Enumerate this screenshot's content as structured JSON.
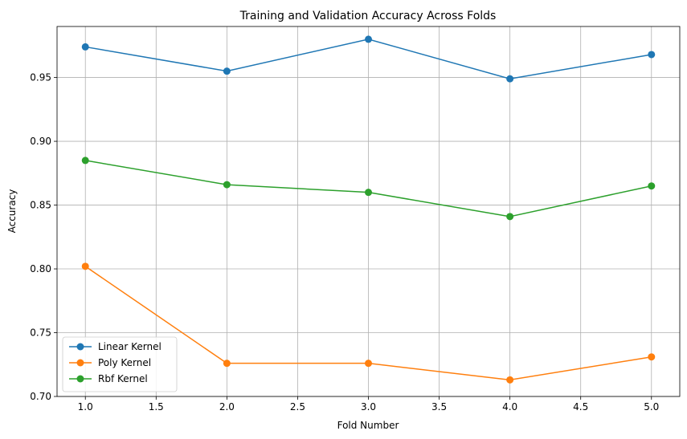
{
  "chart_data": {
    "type": "line",
    "title": "Training and Validation Accuracy Across Folds",
    "xlabel": "Fold Number",
    "ylabel": "Accuracy",
    "x": [
      1,
      2,
      3,
      4,
      5
    ],
    "xlim": [
      0.8,
      5.2
    ],
    "ylim": [
      0.7,
      0.99
    ],
    "xticks": [
      "1.0",
      "1.5",
      "2.0",
      "2.5",
      "3.0",
      "3.5",
      "4.0",
      "4.5",
      "5.0"
    ],
    "yticks": [
      "0.70",
      "0.75",
      "0.80",
      "0.85",
      "0.90",
      "0.95"
    ],
    "grid": true,
    "legend_position": "lower-left",
    "marker": "circle",
    "series": [
      {
        "name": "Linear Kernel",
        "color": "#1f77b4",
        "values": [
          0.974,
          0.955,
          0.98,
          0.949,
          0.968
        ]
      },
      {
        "name": "Poly Kernel",
        "color": "#ff7f0e",
        "values": [
          0.802,
          0.726,
          0.726,
          0.713,
          0.731
        ]
      },
      {
        "name": "Rbf Kernel",
        "color": "#2ca02c",
        "values": [
          0.885,
          0.866,
          0.86,
          0.841,
          0.865
        ]
      }
    ]
  }
}
